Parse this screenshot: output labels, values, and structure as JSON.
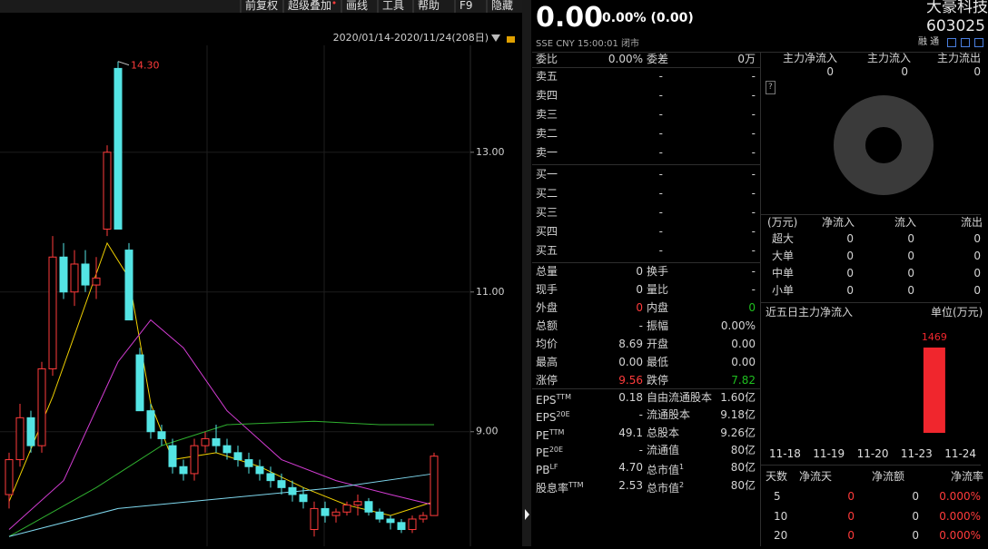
{
  "toolbar": [
    "前复权",
    "超级叠加",
    "画线",
    "工具",
    "帮助",
    "F9",
    "隐藏"
  ],
  "kline": {
    "type": "candlestick",
    "date_range": "2020/01/14-2020/11/24(208日)",
    "ylim": [
      7.36,
      14.53
    ],
    "yticks": [
      {
        "value": 9,
        "label": "9.00"
      },
      {
        "value": 11,
        "label": "11.00"
      },
      {
        "value": 13,
        "label": "13.00"
      }
    ],
    "annotation": {
      "value": 14.3,
      "label": "14.30"
    },
    "up_color": "#ff3b3b",
    "down_color": "#54e4e4",
    "candles": [
      {
        "open": 8.1,
        "high": 8.7,
        "low": 7.9,
        "close": 8.6
      },
      {
        "open": 8.6,
        "high": 9.4,
        "low": 8.5,
        "close": 9.2
      },
      {
        "open": 9.2,
        "high": 9.3,
        "low": 8.7,
        "close": 8.8
      },
      {
        "open": 8.8,
        "high": 10.0,
        "low": 8.7,
        "close": 9.9
      },
      {
        "open": 9.9,
        "high": 11.8,
        "low": 9.8,
        "close": 11.5
      },
      {
        "open": 11.5,
        "high": 11.7,
        "low": 10.9,
        "close": 11.0
      },
      {
        "open": 11.0,
        "high": 11.6,
        "low": 10.8,
        "close": 11.4
      },
      {
        "open": 11.4,
        "high": 11.6,
        "low": 11.0,
        "close": 11.1
      },
      {
        "open": 11.1,
        "high": 11.5,
        "low": 10.9,
        "close": 11.2
      },
      {
        "open": 11.9,
        "high": 13.1,
        "low": 11.8,
        "close": 13.0
      },
      {
        "open": 14.2,
        "high": 14.3,
        "low": 11.9,
        "close": 11.9
      },
      {
        "open": 11.6,
        "high": 11.7,
        "low": 10.6,
        "close": 10.6
      },
      {
        "open": 10.1,
        "high": 10.2,
        "low": 9.3,
        "close": 9.3
      },
      {
        "open": 9.3,
        "high": 9.4,
        "low": 8.9,
        "close": 9.0
      },
      {
        "open": 9.0,
        "high": 9.1,
        "low": 8.8,
        "close": 8.9
      },
      {
        "open": 8.8,
        "high": 8.9,
        "low": 8.4,
        "close": 8.5
      },
      {
        "open": 8.5,
        "high": 8.6,
        "low": 8.3,
        "close": 8.4
      },
      {
        "open": 8.4,
        "high": 8.9,
        "low": 8.3,
        "close": 8.8
      },
      {
        "open": 8.8,
        "high": 9.0,
        "low": 8.7,
        "close": 8.9
      },
      {
        "open": 8.9,
        "high": 9.1,
        "low": 8.7,
        "close": 8.8
      },
      {
        "open": 8.8,
        "high": 8.9,
        "low": 8.6,
        "close": 8.7
      },
      {
        "open": 8.7,
        "high": 8.8,
        "low": 8.5,
        "close": 8.6
      },
      {
        "open": 8.6,
        "high": 8.7,
        "low": 8.4,
        "close": 8.5
      },
      {
        "open": 8.5,
        "high": 8.6,
        "low": 8.3,
        "close": 8.4
      },
      {
        "open": 8.4,
        "high": 8.5,
        "low": 8.2,
        "close": 8.3
      },
      {
        "open": 8.3,
        "high": 8.4,
        "low": 8.1,
        "close": 8.2
      },
      {
        "open": 8.2,
        "high": 8.3,
        "low": 8.0,
        "close": 8.1
      },
      {
        "open": 8.1,
        "high": 8.2,
        "low": 7.9,
        "close": 8.0
      },
      {
        "open": 7.6,
        "high": 8.0,
        "low": 7.5,
        "close": 7.9
      },
      {
        "open": 7.9,
        "high": 8.0,
        "low": 7.7,
        "close": 7.8
      },
      {
        "open": 7.8,
        "high": 7.9,
        "low": 7.7,
        "close": 7.85
      },
      {
        "open": 7.85,
        "high": 8.0,
        "low": 7.8,
        "close": 7.95
      },
      {
        "open": 7.95,
        "high": 8.1,
        "low": 7.8,
        "close": 8.0
      },
      {
        "open": 8.0,
        "high": 8.05,
        "low": 7.8,
        "close": 7.85
      },
      {
        "open": 7.85,
        "high": 7.9,
        "low": 7.7,
        "close": 7.75
      },
      {
        "open": 7.75,
        "high": 7.8,
        "low": 7.6,
        "close": 7.7
      },
      {
        "open": 7.7,
        "high": 7.75,
        "low": 7.55,
        "close": 7.6
      },
      {
        "open": 7.6,
        "high": 7.8,
        "low": 7.55,
        "close": 7.75
      },
      {
        "open": 7.75,
        "high": 7.85,
        "low": 7.7,
        "close": 7.8
      },
      {
        "open": 7.8,
        "high": 8.7,
        "low": 7.8,
        "close": 8.65
      }
    ],
    "ma": [
      {
        "color": "#f0d000",
        "x": [
          0,
          4,
          9,
          11,
          13,
          15,
          19,
          23,
          27,
          31,
          35,
          39
        ],
        "values": [
          8.0,
          9.5,
          11.7,
          11.2,
          9.4,
          8.6,
          8.7,
          8.5,
          8.2,
          7.95,
          7.8,
          8.0
        ]
      },
      {
        "color": "#d23cd2",
        "x": [
          0,
          5,
          10,
          13,
          16,
          20,
          25,
          30,
          35,
          39
        ],
        "values": [
          7.6,
          8.3,
          10.0,
          10.6,
          10.2,
          9.3,
          8.6,
          8.3,
          8.1,
          7.95
        ]
      },
      {
        "color": "#2fb02f",
        "x": [
          0,
          8,
          14,
          20,
          28,
          34,
          39
        ],
        "values": [
          7.5,
          8.2,
          8.8,
          9.1,
          9.15,
          9.1,
          9.1
        ]
      },
      {
        "color": "#7fd8ee",
        "x": [
          0,
          10,
          20,
          30,
          39
        ],
        "values": [
          7.5,
          7.9,
          8.05,
          8.2,
          8.4
        ]
      }
    ]
  },
  "quote": {
    "price": "0.00",
    "change": "0.00% (0.00)",
    "meta": "SSE  CNY  15:00:01  闭市",
    "weibi": {
      "label": "委比",
      "value": "0.00%",
      "label2": "委差",
      "value2": "0万"
    },
    "asks": [
      {
        "label": "卖五",
        "price": "-",
        "vol": "-"
      },
      {
        "label": "卖四",
        "price": "-",
        "vol": "-"
      },
      {
        "label": "卖三",
        "price": "-",
        "vol": "-"
      },
      {
        "label": "卖二",
        "price": "-",
        "vol": "-"
      },
      {
        "label": "卖一",
        "price": "-",
        "vol": "-"
      }
    ],
    "bids": [
      {
        "label": "买一",
        "price": "-",
        "vol": "-"
      },
      {
        "label": "买二",
        "price": "-",
        "vol": "-"
      },
      {
        "label": "买三",
        "price": "-",
        "vol": "-"
      },
      {
        "label": "买四",
        "price": "-",
        "vol": "-"
      },
      {
        "label": "买五",
        "price": "-",
        "vol": "-"
      }
    ],
    "stats": [
      {
        "label": "总量",
        "value": "0",
        "label2": "换手",
        "value2": "-"
      },
      {
        "label": "现手",
        "value": "0",
        "label2": "量比",
        "value2": "-"
      },
      {
        "label": "外盘",
        "value": "0",
        "color": "#ff3b3b",
        "label2": "内盘",
        "value2": "0",
        "color2": "#1fc01f"
      },
      {
        "label": "总额",
        "value": "-",
        "label2": "振幅",
        "value2": "0.00%"
      },
      {
        "label": "均价",
        "value": "8.69",
        "label2": "开盘",
        "value2": "0.00"
      },
      {
        "label": "最高",
        "value": "0.00",
        "label2": "最低",
        "value2": "0.00"
      },
      {
        "label": "涨停",
        "value": "9.56",
        "color": "#ff3b3b",
        "label2": "跌停",
        "value2": "7.82",
        "color2": "#1fc01f"
      }
    ],
    "fundamentals": [
      {
        "label": "EPS",
        "sup": "TTM",
        "value": "0.18",
        "label2": "自由流通股本",
        "value2": "1.60亿"
      },
      {
        "label": "EPS",
        "sup": "20E",
        "value": "-",
        "label2": "流通股本",
        "value2": "9.18亿"
      },
      {
        "label": "PE",
        "sup": "TTM",
        "value": "49.1",
        "label2": "总股本",
        "value2": "9.26亿"
      },
      {
        "label": "PE",
        "sup": "20E",
        "value": "-",
        "label2": "流通值",
        "value2": "80亿"
      },
      {
        "label": "PB",
        "sup": "LF",
        "value": "4.70",
        "label2": "总市值",
        "sup2": "1",
        "value2": "80亿"
      },
      {
        "label": "股息率",
        "sup": "TTM",
        "value": "2.53",
        "label2": "总市值",
        "sup2": "2",
        "value2": "80亿"
      }
    ]
  },
  "stock": {
    "name": "大豪科技",
    "code": "603025",
    "tags": "融 通"
  },
  "flow": {
    "headers": [
      "主力净流入",
      "主力流入",
      "主力流出"
    ],
    "values": [
      0,
      0,
      0
    ],
    "help": "?"
  },
  "flow_table": {
    "headers": [
      "(万元)",
      "净流入",
      "流入",
      "流出"
    ],
    "rows": [
      [
        "超大",
        0,
        0,
        0
      ],
      [
        "大单",
        0,
        0,
        0
      ],
      [
        "中单",
        0,
        0,
        0
      ],
      [
        "小单",
        0,
        0,
        0
      ]
    ]
  },
  "five_day": {
    "type": "bar",
    "title": "近五日主力净流入",
    "unit": "单位(万元)",
    "categories": [
      "11-18",
      "11-19",
      "11-20",
      "11-23",
      "11-24"
    ],
    "values": [
      0,
      0,
      0,
      1469,
      0
    ],
    "color": "#f0262d",
    "ylim": [
      0,
      1469
    ]
  },
  "days_table": {
    "headers": [
      "天数",
      "净流天",
      "净流额",
      "净流率"
    ],
    "rows": [
      [
        5,
        0,
        0,
        "0.000%"
      ],
      [
        10,
        0,
        0,
        "0.000%"
      ],
      [
        20,
        0,
        0,
        "0.000%"
      ]
    ],
    "red_columns": [
      1,
      3
    ]
  }
}
